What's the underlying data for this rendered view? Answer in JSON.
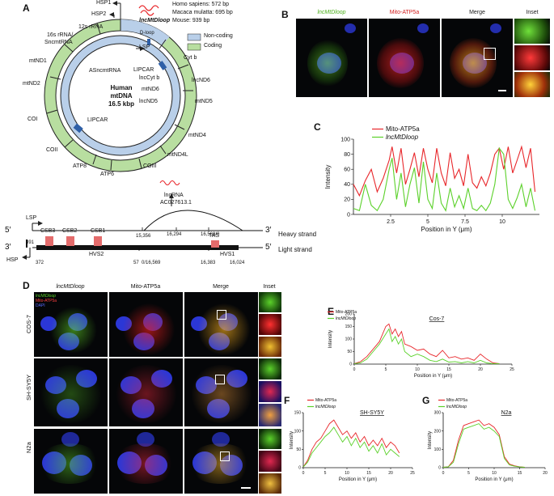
{
  "panels": {
    "A": "A",
    "B": "B",
    "C": "C",
    "D": "D",
    "E": "E",
    "F": "F",
    "G": "G"
  },
  "panelA": {
    "hsp1": "HSP1",
    "hsp2": "HSP2",
    "species": [
      "Homo sapiens: 572 bp",
      "Macaca mulatta: 695 bp",
      "Mouse: 939 bp"
    ],
    "lnc_name": "lncMtDloop",
    "legend": [
      "Non-coding",
      "Coding"
    ],
    "center": [
      "Human",
      "mtDNA",
      "16.5 kbp"
    ],
    "outer_genes": [
      "12s rRNA",
      "16s rRNA/",
      "SncmtRNA",
      "mtND1",
      "mtND2",
      "COI",
      "COII",
      "ATP8",
      "ATP6",
      "COIII",
      "mtND4L",
      "mtND4",
      "mtND5",
      "lncND6",
      "Cyt b",
      "D-loop"
    ],
    "inner_genes": [
      "LSP",
      "ASncmtRNA",
      "LIPCAR",
      "lncCyt b",
      "mtND6",
      "lncND5",
      "LIPCAR"
    ],
    "map": {
      "lsp": "LSP",
      "hsp": "HSP",
      "csb": [
        "CSB3",
        "CSB2",
        "CSB1"
      ],
      "tas": "TAS",
      "lncrna": [
        "lncRNA",
        "AC027613.1"
      ],
      "heavy": "Heavy strand",
      "light": "Light strand",
      "p5a": "5′",
      "p3a": "3′",
      "p3b": "3′",
      "p5b": "5′",
      "nums": [
        "391",
        "372",
        "57",
        "0/16,569",
        "16,383",
        "16,024",
        "15,356",
        "16,294",
        "16,569/0"
      ],
      "hvs": [
        "HVS2",
        "HVS1"
      ]
    }
  },
  "panelB": {
    "headers": [
      "lncMtDloop",
      "Mito-ATP5a",
      "Merge",
      "Inset"
    ]
  },
  "chartC": {
    "legend": [
      "Mito-ATP5a",
      "lncMtDloop"
    ],
    "ylabel": "Intensity",
    "xlabel": "Position in Y (μm)"
  },
  "panelD": {
    "headers": [
      "lncMtDloop",
      "Mito-ATP5a",
      "Merge",
      "Inset"
    ],
    "rows": [
      "COS-7",
      "SH-SY5Y",
      "N2a"
    ],
    "legend": [
      "lncMtDloop",
      "Mito-ATP5a",
      "DAPI"
    ]
  },
  "chartE": {
    "title": "Cos-7",
    "legend": [
      "Mito-ATP5a",
      "lncMtDloop"
    ],
    "ylabel": "Intensity",
    "xlabel": "Position in Y (μm)"
  },
  "chartF": {
    "title": "SH-SY5Y",
    "legend": [
      "Mito-ATP5a",
      "lncMtDloop"
    ],
    "ylabel": "Intensity",
    "xlabel": "Position in Y (μm)"
  },
  "chartG": {
    "title": "N2a",
    "legend": [
      "Mito-ATP5a",
      "lncMtDloop"
    ],
    "ylabel": "Intensity",
    "xlabel": "Position in Y (μm)"
  },
  "colors": {
    "red": "#e8262a",
    "green": "#5bd12a",
    "noncoding": "#b9cfe9",
    "coding": "#b8dea0"
  },
  "chart_data": [
    {
      "type": "line",
      "panel": "C",
      "xlabel": "Position in Y (μm)",
      "ylabel": "Intensity",
      "xlim": [
        0,
        12.5
      ],
      "ylim": [
        0,
        100
      ],
      "xticks": [
        2.5,
        5,
        7.5,
        10
      ],
      "yticks": [
        0,
        20,
        40,
        60,
        80,
        100
      ],
      "series": [
        {
          "name": "Mito-ATP5a",
          "color": "#e8262a",
          "x": [
            0,
            0.4,
            0.8,
            1.2,
            1.6,
            2.0,
            2.4,
            2.6,
            2.9,
            3.2,
            3.5,
            3.8,
            4.1,
            4.4,
            4.7,
            5.0,
            5.3,
            5.6,
            5.9,
            6.2,
            6.5,
            6.8,
            7.1,
            7.4,
            7.7,
            8.0,
            8.3,
            8.6,
            8.9,
            9.2,
            9.5,
            9.8,
            10.1,
            10.4,
            10.7,
            11.0,
            11.3,
            11.6,
            11.9,
            12.2
          ],
          "y": [
            40,
            25,
            45,
            60,
            30,
            48,
            72,
            90,
            55,
            88,
            40,
            60,
            82,
            50,
            88,
            60,
            42,
            88,
            55,
            38,
            82,
            48,
            60,
            38,
            80,
            42,
            35,
            50,
            38,
            55,
            80,
            88,
            60,
            90,
            55,
            72,
            90,
            62,
            88,
            30
          ]
        },
        {
          "name": "lncMtDloop",
          "color": "#5bd12a",
          "x": [
            0,
            0.4,
            0.8,
            1.2,
            1.6,
            2.0,
            2.4,
            2.6,
            2.9,
            3.2,
            3.5,
            3.8,
            4.1,
            4.4,
            4.7,
            5.0,
            5.3,
            5.6,
            5.9,
            6.2,
            6.5,
            6.8,
            7.1,
            7.4,
            7.7,
            8.0,
            8.3,
            8.6,
            8.9,
            9.2,
            9.5,
            9.8,
            10.1,
            10.4,
            10.7,
            11.0,
            11.3,
            11.6,
            11.9,
            12.2
          ],
          "y": [
            8,
            5,
            40,
            12,
            5,
            20,
            60,
            75,
            20,
            55,
            10,
            40,
            62,
            15,
            70,
            20,
            8,
            55,
            15,
            5,
            35,
            10,
            25,
            8,
            35,
            8,
            5,
            12,
            5,
            15,
            40,
            88,
            80,
            20,
            8,
            22,
            40,
            10,
            35,
            5
          ]
        }
      ]
    },
    {
      "type": "line",
      "panel": "E",
      "title": "Cos-7",
      "xlabel": "Position in Y (μm)",
      "ylabel": "Intensity",
      "xlim": [
        0,
        25
      ],
      "ylim": [
        0,
        200
      ],
      "xticks": [
        0,
        5,
        10,
        15,
        20,
        25
      ],
      "yticks": [
        0,
        50,
        100,
        150,
        200
      ],
      "series": [
        {
          "name": "Mito-ATP5a",
          "color": "#e8262a",
          "x": [
            0,
            1,
            2,
            3,
            4,
            5,
            5.5,
            6,
            6.5,
            7,
            7.5,
            8,
            9,
            10,
            11,
            12,
            13,
            14,
            15,
            16,
            17,
            18,
            19,
            20,
            21,
            22,
            23
          ],
          "y": [
            2,
            10,
            30,
            60,
            90,
            150,
            160,
            120,
            140,
            110,
            130,
            80,
            70,
            55,
            60,
            40,
            30,
            55,
            25,
            30,
            20,
            25,
            15,
            40,
            20,
            5,
            2
          ]
        },
        {
          "name": "lncMtDloop",
          "color": "#5bd12a",
          "x": [
            0,
            1,
            2,
            3,
            4,
            5,
            5.5,
            6,
            6.5,
            7,
            7.5,
            8,
            9,
            10,
            11,
            12,
            13,
            14,
            15,
            16,
            17,
            18,
            19,
            20,
            21,
            22,
            23
          ],
          "y": [
            2,
            5,
            20,
            50,
            80,
            120,
            140,
            90,
            110,
            80,
            100,
            50,
            30,
            40,
            30,
            15,
            10,
            20,
            8,
            10,
            5,
            10,
            5,
            15,
            5,
            2,
            2
          ]
        }
      ]
    },
    {
      "type": "line",
      "panel": "F",
      "title": "SH-SY5Y",
      "xlabel": "Position in Y (μm)",
      "ylabel": "Intensity",
      "xlim": [
        0,
        25
      ],
      "ylim": [
        0,
        150
      ],
      "xticks": [
        0,
        5,
        10,
        15,
        20,
        25
      ],
      "yticks": [
        0,
        50,
        100,
        150
      ],
      "series": [
        {
          "name": "Mito-ATP5a",
          "color": "#e8262a",
          "x": [
            0,
            1,
            2,
            3,
            4,
            5,
            6,
            7,
            8,
            9,
            10,
            11,
            12,
            13,
            14,
            15,
            16,
            17,
            18,
            19,
            20,
            21,
            22
          ],
          "y": [
            2,
            20,
            50,
            70,
            80,
            100,
            120,
            130,
            110,
            90,
            100,
            80,
            95,
            70,
            85,
            60,
            75,
            60,
            80,
            55,
            70,
            60,
            40
          ]
        },
        {
          "name": "lncMtDloop",
          "color": "#5bd12a",
          "x": [
            0,
            1,
            2,
            3,
            4,
            5,
            6,
            7,
            8,
            9,
            10,
            11,
            12,
            13,
            14,
            15,
            16,
            17,
            18,
            19,
            20,
            21,
            22
          ],
          "y": [
            2,
            15,
            40,
            55,
            70,
            85,
            95,
            110,
            90,
            70,
            85,
            60,
            80,
            55,
            70,
            45,
            60,
            40,
            65,
            35,
            50,
            40,
            30
          ]
        }
      ]
    },
    {
      "type": "line",
      "panel": "G",
      "title": "N2a",
      "xlabel": "Position in Y (μm)",
      "ylabel": "Intensity",
      "xlim": [
        0,
        20
      ],
      "ylim": [
        0,
        300
      ],
      "xticks": [
        0,
        5,
        10,
        15,
        20
      ],
      "yticks": [
        0,
        100,
        200,
        300
      ],
      "series": [
        {
          "name": "Mito-ATP5a",
          "color": "#e8262a",
          "x": [
            0,
            1,
            2,
            3,
            4,
            5,
            6,
            7,
            8,
            9,
            10,
            11,
            12,
            13,
            14,
            15,
            16
          ],
          "y": [
            2,
            5,
            40,
            150,
            230,
            240,
            250,
            260,
            230,
            240,
            220,
            180,
            60,
            20,
            10,
            5,
            2
          ]
        },
        {
          "name": "lncMtDloop",
          "color": "#5bd12a",
          "x": [
            0,
            1,
            2,
            3,
            4,
            5,
            6,
            7,
            8,
            9,
            10,
            11,
            12,
            13,
            14,
            15,
            16
          ],
          "y": [
            2,
            5,
            30,
            130,
            210,
            220,
            230,
            240,
            210,
            220,
            200,
            170,
            50,
            15,
            8,
            4,
            2
          ]
        }
      ]
    }
  ]
}
